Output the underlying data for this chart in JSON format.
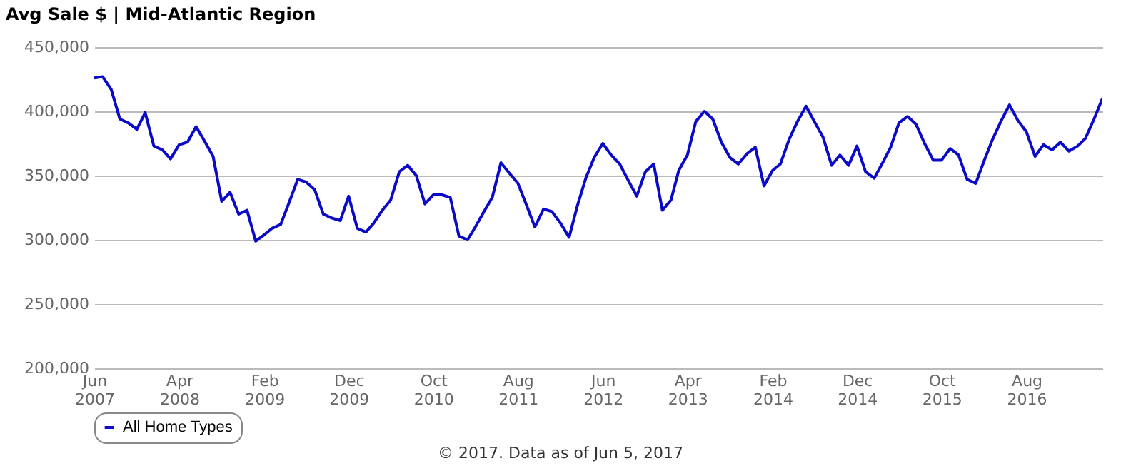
{
  "chart_data": {
    "type": "line",
    "title": "Avg Sale $ | Mid-Atlantic Region",
    "x": [
      "2007-06",
      "2007-07",
      "2007-08",
      "2007-09",
      "2007-10",
      "2007-11",
      "2007-12",
      "2008-01",
      "2008-02",
      "2008-03",
      "2008-04",
      "2008-05",
      "2008-06",
      "2008-07",
      "2008-08",
      "2008-09",
      "2008-10",
      "2008-11",
      "2008-12",
      "2009-01",
      "2009-02",
      "2009-03",
      "2009-04",
      "2009-05",
      "2009-06",
      "2009-07",
      "2009-08",
      "2009-09",
      "2009-10",
      "2009-11",
      "2009-12",
      "2010-01",
      "2010-02",
      "2010-03",
      "2010-04",
      "2010-05",
      "2010-06",
      "2010-07",
      "2010-08",
      "2010-09",
      "2010-10",
      "2010-11",
      "2010-12",
      "2011-01",
      "2011-02",
      "2011-03",
      "2011-04",
      "2011-05",
      "2011-06",
      "2011-07",
      "2011-08",
      "2011-09",
      "2011-10",
      "2011-11",
      "2011-12",
      "2012-01",
      "2012-02",
      "2012-03",
      "2012-04",
      "2012-05",
      "2012-06",
      "2012-07",
      "2012-08",
      "2012-09",
      "2012-10",
      "2012-11",
      "2012-12",
      "2013-01",
      "2013-02",
      "2013-03",
      "2013-04",
      "2013-05",
      "2013-06",
      "2013-07",
      "2013-08",
      "2013-09",
      "2013-10",
      "2013-11",
      "2013-12",
      "2014-01",
      "2014-02",
      "2014-03",
      "2014-04",
      "2014-05",
      "2014-06",
      "2014-07",
      "2014-08",
      "2014-09",
      "2014-10",
      "2014-11",
      "2014-12",
      "2015-01",
      "2015-02",
      "2015-03",
      "2015-04",
      "2015-05",
      "2015-06",
      "2015-07",
      "2015-08",
      "2015-09",
      "2015-10",
      "2015-11",
      "2015-12",
      "2016-01",
      "2016-02",
      "2016-03",
      "2016-04",
      "2016-05",
      "2016-06",
      "2016-07",
      "2016-08",
      "2016-09",
      "2016-10",
      "2016-11",
      "2016-12",
      "2017-01",
      "2017-02",
      "2017-03",
      "2017-04",
      "2017-05"
    ],
    "series": [
      {
        "name": "All Home Types",
        "color": "#0a0ac8",
        "values": [
          426000,
          427000,
          417000,
          394000,
          391000,
          386000,
          399000,
          373000,
          370000,
          363000,
          374000,
          376000,
          388000,
          377000,
          365000,
          330000,
          337000,
          320000,
          323000,
          299000,
          304000,
          309000,
          312000,
          329000,
          347000,
          345000,
          339000,
          320000,
          317000,
          315000,
          334000,
          309000,
          306000,
          313000,
          323000,
          331000,
          353000,
          358000,
          350000,
          328000,
          335000,
          335000,
          333000,
          303000,
          300000,
          310000,
          322000,
          333000,
          360000,
          352000,
          344000,
          327000,
          310000,
          324000,
          322000,
          313000,
          302000,
          326000,
          348000,
          364000,
          375000,
          366000,
          359000,
          346000,
          334000,
          353000,
          359000,
          323000,
          331000,
          354000,
          366000,
          392000,
          400000,
          394000,
          376000,
          364000,
          359000,
          367000,
          372000,
          342000,
          354000,
          359000,
          378000,
          392000,
          404000,
          392000,
          380000,
          358000,
          366000,
          358000,
          373000,
          353000,
          348000,
          359000,
          372000,
          391000,
          396000,
          390000,
          375000,
          362000,
          362000,
          371000,
          366000,
          347000,
          344000,
          361000,
          378000,
          392000,
          405000,
          393000,
          384000,
          365000,
          374000,
          370000,
          376000,
          369000,
          373000,
          379000,
          394000,
          410000
        ]
      }
    ],
    "xlim": [
      "2007-06",
      "2017-05"
    ],
    "xticks": [
      {
        "value": "2007-06",
        "label": "Jun 2007"
      },
      {
        "value": "2008-04",
        "label": "Apr 2008"
      },
      {
        "value": "2009-02",
        "label": "Feb 2009"
      },
      {
        "value": "2009-12",
        "label": "Dec 2009"
      },
      {
        "value": "2010-10",
        "label": "Oct 2010"
      },
      {
        "value": "2011-08",
        "label": "Aug 2011"
      },
      {
        "value": "2012-06",
        "label": "Jun 2012"
      },
      {
        "value": "2013-04",
        "label": "Apr 2013"
      },
      {
        "value": "2014-02",
        "label": "Feb 2014"
      },
      {
        "value": "2014-12",
        "label": "Dec 2014"
      },
      {
        "value": "2015-10",
        "label": "Oct 2015"
      },
      {
        "value": "2016-08",
        "label": "Aug 2016"
      }
    ],
    "ylim": [
      200000,
      450000
    ],
    "yticks": [
      {
        "value": 200000,
        "label": "200,000"
      },
      {
        "value": 250000,
        "label": "250,000"
      },
      {
        "value": 300000,
        "label": "300,000"
      },
      {
        "value": 350000,
        "label": "350,000"
      },
      {
        "value": 400000,
        "label": "400,000"
      },
      {
        "value": 450000,
        "label": "450,000"
      }
    ],
    "grid": "y",
    "legend": "bottom",
    "line_style": "solid",
    "annotations": [
      "© 2017. Data as of Jun 5, 2017"
    ]
  }
}
